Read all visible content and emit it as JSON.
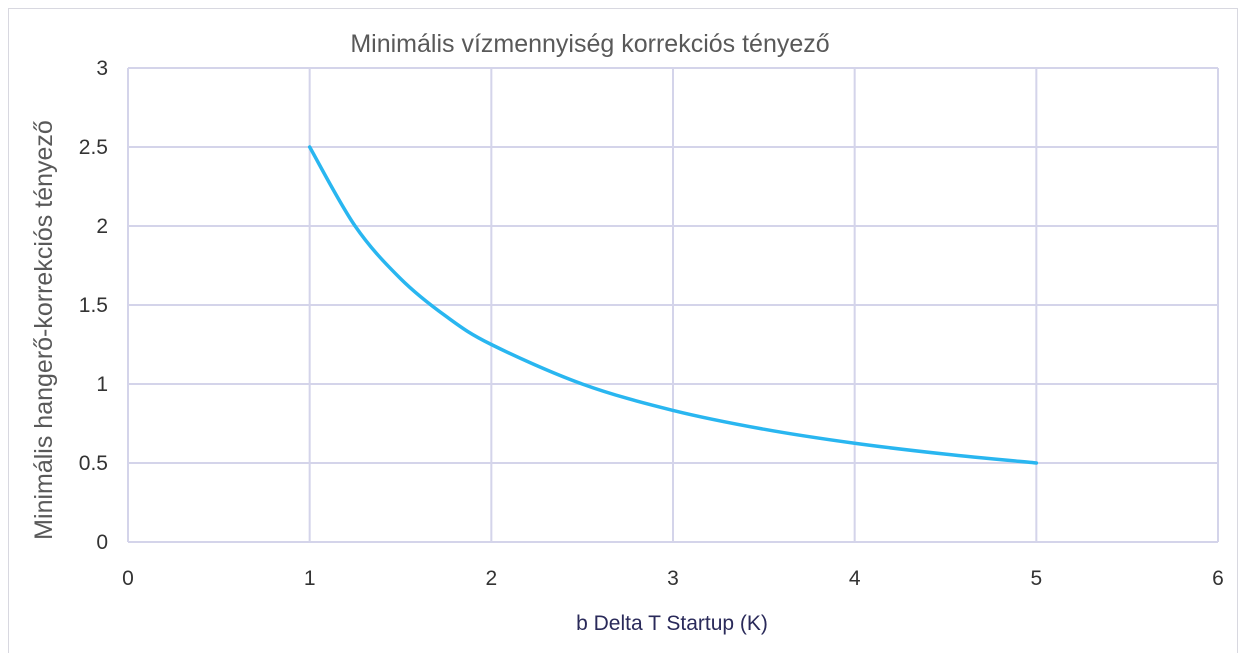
{
  "chart_data": {
    "type": "line",
    "title": "Minimális vízmennyiség korrekciós tényező",
    "xlabel": "b Delta T Startup (K)",
    "ylabel": "Minimális hangerő-korrekciós tényező",
    "xlim": [
      0,
      6
    ],
    "ylim": [
      0,
      3
    ],
    "x_ticks": [
      "0",
      "1",
      "2",
      "3",
      "4",
      "5",
      "6"
    ],
    "y_ticks": [
      "0",
      "0.5",
      "1",
      "1.5",
      "2",
      "2.5",
      "3"
    ],
    "grid": true,
    "legend": "none",
    "series": [
      {
        "color": "#29b6f0",
        "x": [
          1,
          1.25,
          1.5,
          1.75,
          2,
          2.5,
          3,
          3.5,
          4,
          4.5,
          5
        ],
        "y": [
          2.5,
          2.0,
          1.667,
          1.429,
          1.25,
          1.0,
          0.833,
          0.714,
          0.625,
          0.556,
          0.5
        ]
      }
    ]
  }
}
